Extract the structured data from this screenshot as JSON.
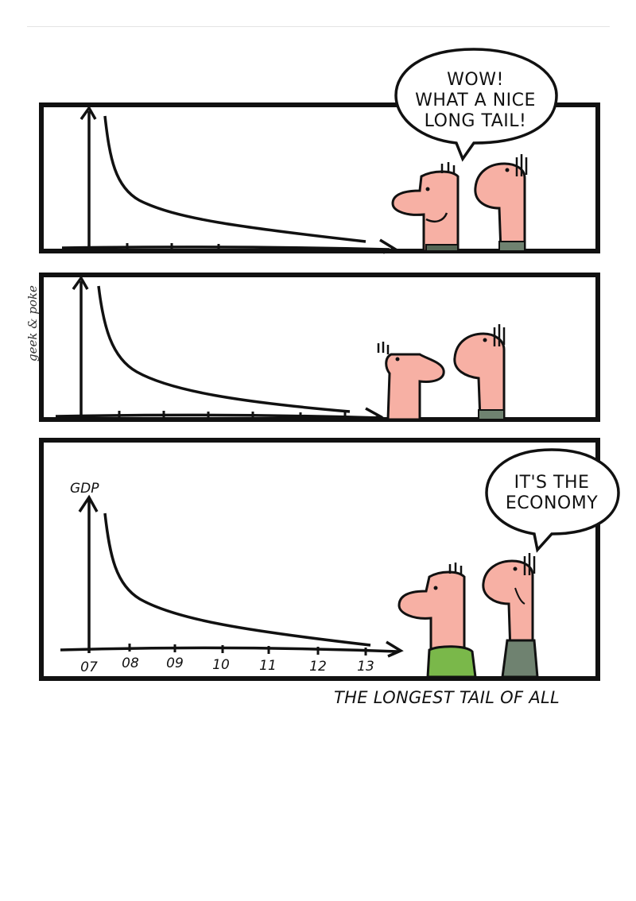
{
  "panels": [
    {
      "bubble_lines": [
        "WOW!",
        "WHAT A NICE",
        "LONG TAIL!"
      ]
    },
    {
      "bubble_lines": []
    },
    {
      "bubble_lines": [
        "IT'S THE",
        "ECONOMY"
      ]
    }
  ],
  "chart": {
    "y_label": "GDP",
    "x_ticks": [
      "07",
      "08",
      "09",
      "10",
      "11",
      "12",
      "13"
    ]
  },
  "signature": "geek & poke",
  "caption": "THE LONGEST TAIL OF ALL",
  "colors": {
    "frame": "#111111",
    "skin": "#f7b0a4",
    "shirt_green": "#7ab84a",
    "shirt_gray": "#6f8270",
    "shirt_dark": "#556655"
  }
}
